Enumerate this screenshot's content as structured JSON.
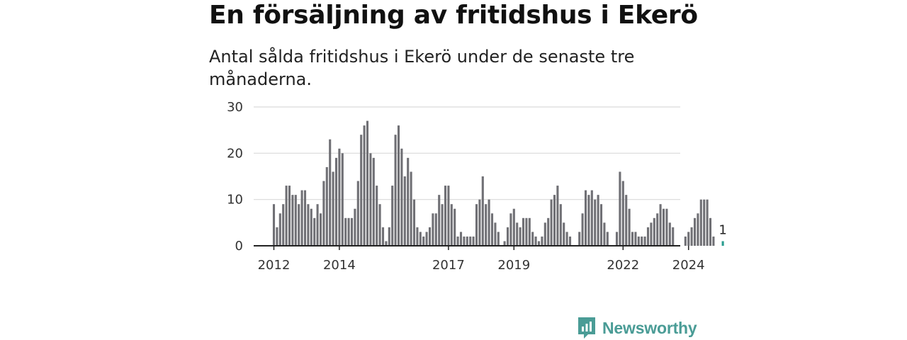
{
  "title": "En försäljning av fritidshus i Ekerö",
  "subtitle": "Antal sålda fritidshus i Ekerö under de senaste tre månaderna.",
  "brand": {
    "name": "Newsworthy",
    "icon": "newsworthy-logo-icon"
  },
  "colors": {
    "bar": "#707075",
    "highlight": "#2a9d8f",
    "grid": "#d9d9d9",
    "axis": "#222222"
  },
  "chart_data": {
    "type": "bar",
    "ylim": [
      0,
      30
    ],
    "yticks": [
      0,
      10,
      20,
      30
    ],
    "x_tick_labels": [
      {
        "label": "2012",
        "index": 0
      },
      {
        "label": "2014",
        "index": 21
      },
      {
        "label": "2017",
        "index": 56
      },
      {
        "label": "2019",
        "index": 77
      },
      {
        "label": "2022",
        "index": 112
      },
      {
        "label": "2024",
        "index": 133
      }
    ],
    "grid": true,
    "highlight_label": "1",
    "values": [
      9,
      4,
      7,
      9,
      13,
      13,
      11,
      11,
      9,
      12,
      12,
      9,
      8,
      6,
      9,
      7,
      14,
      17,
      23,
      16,
      19,
      21,
      20,
      6,
      6,
      6,
      8,
      14,
      24,
      26,
      27,
      20,
      19,
      13,
      9,
      4,
      1,
      4,
      13,
      24,
      26,
      21,
      15,
      19,
      16,
      10,
      4,
      3,
      2,
      3,
      4,
      7,
      7,
      11,
      9,
      13,
      13,
      9,
      8,
      2,
      3,
      2,
      2,
      2,
      2,
      9,
      10,
      15,
      9,
      10,
      7,
      5,
      3,
      0,
      1,
      4,
      7,
      8,
      5,
      4,
      6,
      6,
      6,
      3,
      2,
      1,
      2,
      5,
      6,
      10,
      11,
      13,
      9,
      5,
      3,
      2,
      0,
      0,
      3,
      7,
      12,
      11,
      12,
      10,
      11,
      9,
      5,
      3,
      0,
      0,
      3,
      16,
      14,
      11,
      8,
      3,
      3,
      2,
      2,
      2,
      4,
      5,
      6,
      7,
      9,
      8,
      8,
      5,
      4,
      0,
      0,
      0,
      2,
      3,
      4,
      6,
      7,
      10,
      10,
      10,
      6,
      2,
      0,
      0,
      1
    ]
  }
}
